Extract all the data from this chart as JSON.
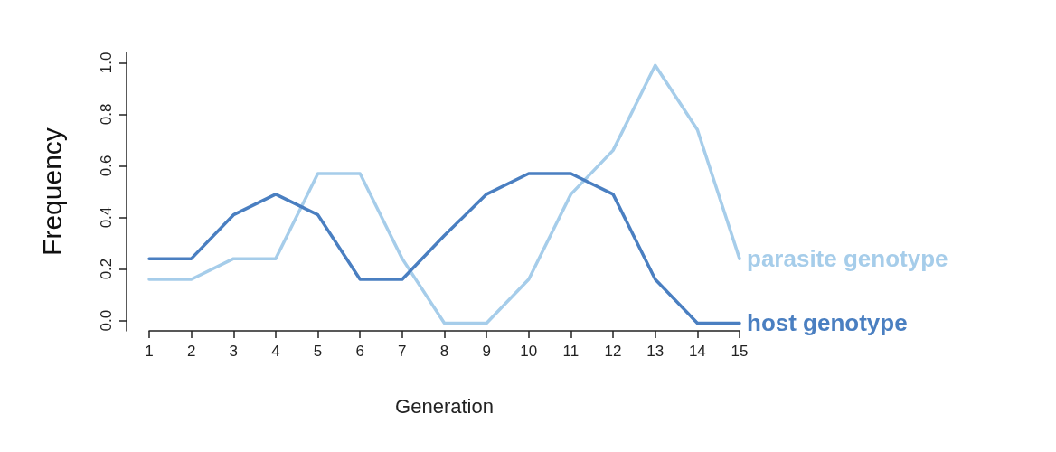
{
  "chart_data": {
    "type": "line",
    "xlabel": "Generation",
    "ylabel": "Frequency",
    "x": [
      1,
      2,
      3,
      4,
      5,
      6,
      7,
      8,
      9,
      10,
      11,
      12,
      13,
      14,
      15
    ],
    "xlim": [
      1,
      15
    ],
    "xticks": [
      1,
      2,
      3,
      4,
      5,
      6,
      7,
      8,
      9,
      10,
      11,
      12,
      13,
      14,
      15
    ],
    "ylim": [
      -0.04,
      1.04
    ],
    "yticks": [
      {
        "value": 0,
        "label": "0.0"
      },
      {
        "value": 0.2,
        "label": "0.2"
      },
      {
        "value": 0.4,
        "label": "0.4"
      },
      {
        "value": 0.6,
        "label": "0.6"
      },
      {
        "value": 0.8,
        "label": "0.8"
      },
      {
        "value": 1,
        "label": "1.0"
      }
    ],
    "grid": false,
    "legend": false,
    "marker": "none",
    "line_style": "solid",
    "series": [
      {
        "name": "parasite genotype",
        "color": "#a6cdea",
        "values": [
          0.16,
          0.16,
          0.24,
          0.24,
          0.57,
          0.57,
          0.24,
          -0.01,
          -0.01,
          0.16,
          0.49,
          0.66,
          0.99,
          0.74,
          0.24
        ]
      },
      {
        "name": "host genotype",
        "color": "#4a7fc1",
        "values": [
          0.24,
          0.24,
          0.41,
          0.49,
          0.41,
          0.16,
          0.16,
          0.33,
          0.49,
          0.57,
          0.57,
          0.49,
          0.16,
          -0.01,
          -0.01
        ]
      }
    ]
  }
}
